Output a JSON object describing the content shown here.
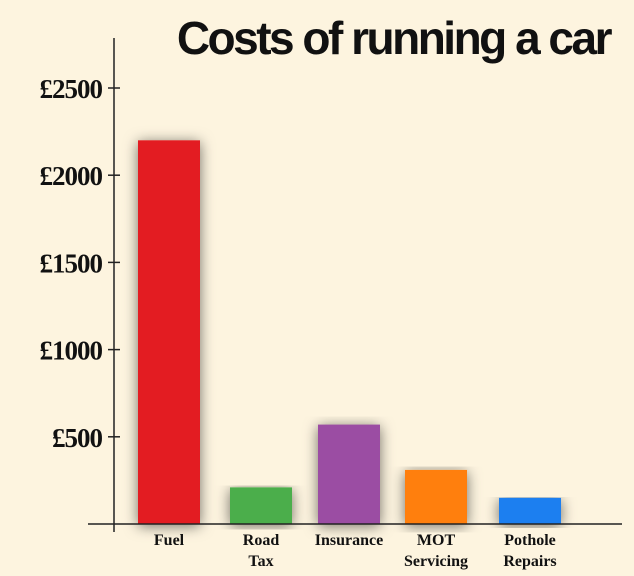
{
  "chart_data": {
    "type": "bar",
    "title": "Costs of running a car",
    "xlabel": "",
    "ylabel": "",
    "categories": [
      [
        "Fuel"
      ],
      [
        "Road",
        "Tax"
      ],
      [
        "Insurance"
      ],
      [
        "MOT",
        "Servicing"
      ],
      [
        "Pothole",
        "Repairs"
      ]
    ],
    "values": [
      2200,
      210,
      570,
      310,
      150
    ],
    "colors": [
      "#e31b23",
      "#4cae4c",
      "#9b4ea3",
      "#ff7f0e",
      "#1a7ff0"
    ],
    "ylim": [
      0,
      2500
    ],
    "yticks": [
      500,
      1000,
      1500,
      2000,
      2500
    ],
    "ytick_labels": [
      "£500",
      "£1000",
      "£1500",
      "£2000",
      "£2500"
    ],
    "grid": false,
    "legend": "none"
  }
}
